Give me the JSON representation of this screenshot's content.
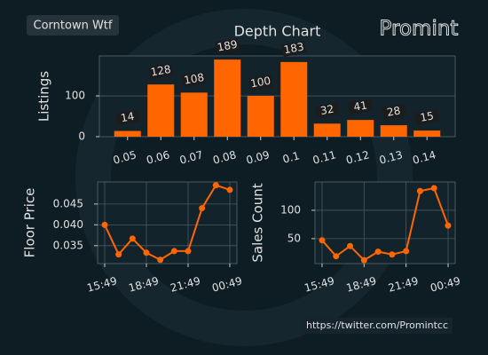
{
  "header_label": "Corntown Wtf",
  "logo": "Promint",
  "footer": "https://twitter.com/Promintcc",
  "chart_data": [
    {
      "type": "bar",
      "title": "Depth Chart",
      "y_label": "Listings",
      "categories": [
        "0.05",
        "0.06",
        "0.07",
        "0.08",
        "0.09",
        "0.1",
        "0.11",
        "0.12",
        "0.13",
        "0.14"
      ],
      "values": [
        14,
        128,
        108,
        189,
        100,
        183,
        32,
        41,
        28,
        15
      ],
      "color": "#ff6600",
      "ylim": [
        0,
        198
      ],
      "yticks": [
        0,
        100
      ],
      "grid": true
    },
    {
      "type": "line",
      "y_label": "Floor Price",
      "categories": [
        "15:49",
        null,
        null,
        "18:49",
        null,
        null,
        "21:49",
        null,
        null,
        "00:49"
      ],
      "values": [
        0.04,
        0.0329,
        0.0367,
        0.0333,
        0.0316,
        0.0337,
        0.0337,
        0.044,
        0.0495,
        0.0484
      ],
      "color": "#ff6600",
      "ylim": [
        0.0307,
        0.0503
      ],
      "yticks": [
        0.035,
        {
          "value": 0.04,
          "label": "0.040"
        },
        0.045
      ],
      "grid": true
    },
    {
      "type": "line",
      "y_label": "Sales Count",
      "categories": [
        "15:49",
        null,
        null,
        "18:49",
        null,
        null,
        "21:49",
        null,
        null,
        "00:49"
      ],
      "values": [
        47,
        19,
        37,
        12,
        27,
        22,
        28,
        134,
        139,
        73
      ],
      "color": "#ff6600",
      "ylim": [
        6,
        150
      ],
      "yticks": [
        50,
        100
      ],
      "grid": true
    }
  ]
}
